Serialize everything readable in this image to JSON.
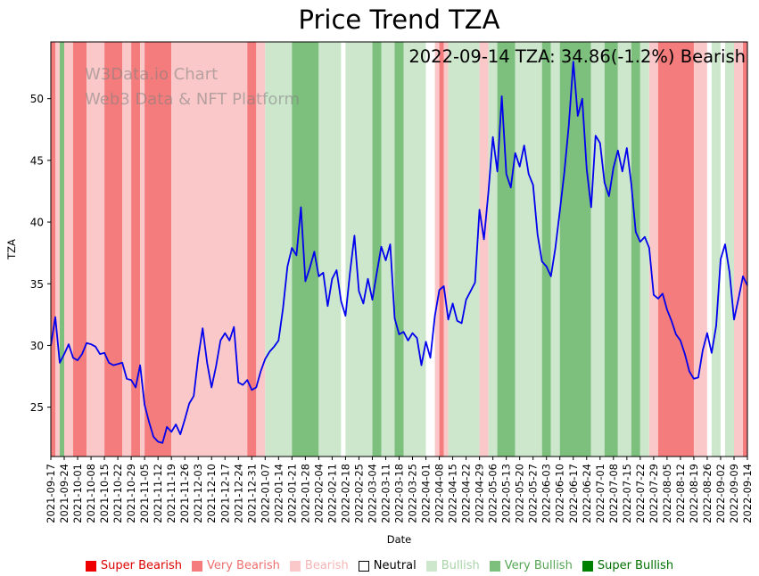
{
  "title": "Price Trend TZA",
  "annotation": "2022-09-14 TZA: 34.86(-1.2%) Bearish",
  "watermark": {
    "line1": "W3Data.io Chart",
    "line2": "Web3 Data & NFT Platform"
  },
  "chart_data": {
    "type": "line",
    "title": "Price Trend TZA",
    "xlabel": "Date",
    "ylabel": "TZA",
    "ylim": [
      21.0,
      54.6
    ],
    "yticks": [
      25,
      30,
      35,
      40,
      45,
      50
    ],
    "grid": false,
    "legend_position": "bottom",
    "latest": {
      "date": "2022-09-14",
      "value": 34.86,
      "change_pct": -1.2,
      "sentiment": "Bearish"
    },
    "x_tick_dates": [
      "2021-09-17",
      "2021-09-24",
      "2021-10-01",
      "2021-10-08",
      "2021-10-15",
      "2021-10-22",
      "2021-10-29",
      "2021-11-05",
      "2021-11-12",
      "2021-11-19",
      "2021-11-26",
      "2021-12-03",
      "2021-12-10",
      "2021-12-17",
      "2021-12-24",
      "2021-12-31",
      "2022-01-07",
      "2022-01-14",
      "2022-01-21",
      "2022-01-28",
      "2022-02-04",
      "2022-02-11",
      "2022-02-18",
      "2022-02-25",
      "2022-03-04",
      "2022-03-11",
      "2022-03-18",
      "2022-03-25",
      "2022-04-01",
      "2022-04-08",
      "2022-04-15",
      "2022-04-22",
      "2022-04-29",
      "2022-05-06",
      "2022-05-13",
      "2022-05-20",
      "2022-05-27",
      "2022-06-03",
      "2022-06-10",
      "2022-06-17",
      "2022-06-24",
      "2022-07-01",
      "2022-07-08",
      "2022-07-15",
      "2022-07-22",
      "2022-07-29",
      "2022-08-05",
      "2022-08-12",
      "2022-08-19",
      "2022-08-26",
      "2022-09-02",
      "2022-09-09",
      "2022-09-14"
    ],
    "ticks_every_n_points": 3,
    "series": [
      {
        "name": "TZA",
        "color": "#0000ee",
        "values": [
          30.0,
          32.3,
          28.6,
          29.3,
          30.1,
          29.0,
          28.8,
          29.3,
          30.2,
          30.1,
          29.9,
          29.3,
          29.4,
          28.6,
          28.4,
          28.5,
          28.6,
          27.3,
          27.2,
          26.6,
          28.4,
          25.2,
          23.8,
          22.6,
          22.2,
          22.1,
          23.4,
          23.0,
          23.6,
          22.8,
          24.0,
          25.3,
          25.9,
          29.0,
          31.4,
          28.6,
          26.6,
          28.3,
          30.4,
          31.0,
          30.4,
          31.5,
          27.0,
          26.8,
          27.2,
          26.4,
          26.6,
          27.9,
          28.9,
          29.5,
          29.9,
          30.4,
          33.0,
          36.4,
          37.9,
          37.3,
          41.2,
          35.2,
          36.3,
          37.6,
          35.6,
          35.9,
          33.2,
          35.4,
          36.1,
          33.6,
          32.4,
          35.9,
          38.9,
          34.4,
          33.4,
          35.4,
          33.7,
          35.9,
          38.0,
          36.9,
          38.2,
          32.2,
          30.9,
          31.1,
          30.4,
          31.0,
          30.6,
          28.4,
          30.3,
          29.0,
          32.4,
          34.5,
          34.8,
          32.1,
          33.4,
          32.0,
          31.8,
          33.7,
          34.4,
          35.1,
          41.0,
          38.6,
          42.4,
          46.9,
          44.1,
          50.2,
          43.9,
          42.8,
          45.6,
          44.5,
          46.2,
          43.9,
          43.0,
          39.0,
          36.8,
          36.4,
          35.6,
          37.9,
          40.9,
          44.0,
          47.8,
          53.0,
          48.6,
          50.0,
          44.3,
          41.2,
          47.0,
          46.4,
          43.2,
          42.1,
          44.4,
          45.8,
          44.1,
          46.0,
          43.1,
          39.2,
          38.4,
          38.8,
          37.9,
          34.1,
          33.8,
          34.2,
          32.9,
          32.0,
          30.9,
          30.4,
          29.3,
          27.9,
          27.3,
          27.4,
          29.6,
          31.0,
          29.4,
          31.6,
          37.0,
          38.2,
          35.9,
          32.1,
          33.8,
          35.6,
          34.86
        ]
      }
    ],
    "band_colors": {
      "super_bearish": "#ee0000",
      "very_bearish": "#f47c7c",
      "bearish": "#fac8c8",
      "neutral": "#ffffff",
      "bullish": "#cde7cd",
      "very_bullish": "#7dbf7d",
      "super_bullish": "#008000"
    },
    "sentiment_bands": [
      {
        "from": 0,
        "to": 1,
        "level": "very_bearish"
      },
      {
        "from": 1,
        "to": 2,
        "level": "bearish"
      },
      {
        "from": 2,
        "to": 3,
        "level": "very_bullish"
      },
      {
        "from": 3,
        "to": 5,
        "level": "bearish"
      },
      {
        "from": 5,
        "to": 8,
        "level": "very_bearish"
      },
      {
        "from": 8,
        "to": 12,
        "level": "bearish"
      },
      {
        "from": 12,
        "to": 16,
        "level": "very_bearish"
      },
      {
        "from": 16,
        "to": 18,
        "level": "bearish"
      },
      {
        "from": 18,
        "to": 20,
        "level": "very_bearish"
      },
      {
        "from": 20,
        "to": 21,
        "level": "bearish"
      },
      {
        "from": 21,
        "to": 27,
        "level": "very_bearish"
      },
      {
        "from": 27,
        "to": 44,
        "level": "bearish"
      },
      {
        "from": 44,
        "to": 46,
        "level": "very_bearish"
      },
      {
        "from": 46,
        "to": 48,
        "level": "bearish"
      },
      {
        "from": 48,
        "to": 54,
        "level": "bullish"
      },
      {
        "from": 54,
        "to": 60,
        "level": "very_bullish"
      },
      {
        "from": 60,
        "to": 65,
        "level": "bullish"
      },
      {
        "from": 65,
        "to": 66,
        "level": "neutral"
      },
      {
        "from": 66,
        "to": 72,
        "level": "bullish"
      },
      {
        "from": 72,
        "to": 74,
        "level": "very_bullish"
      },
      {
        "from": 74,
        "to": 77,
        "level": "bullish"
      },
      {
        "from": 77,
        "to": 79,
        "level": "very_bullish"
      },
      {
        "from": 79,
        "to": 84,
        "level": "bullish"
      },
      {
        "from": 84,
        "to": 86,
        "level": "neutral"
      },
      {
        "from": 86,
        "to": 87,
        "level": "bearish"
      },
      {
        "from": 87,
        "to": 88,
        "level": "very_bearish"
      },
      {
        "from": 88,
        "to": 89,
        "level": "bearish"
      },
      {
        "from": 89,
        "to": 96,
        "level": "bullish"
      },
      {
        "from": 96,
        "to": 98,
        "level": "bearish"
      },
      {
        "from": 98,
        "to": 100,
        "level": "bullish"
      },
      {
        "from": 100,
        "to": 104,
        "level": "very_bullish"
      },
      {
        "from": 104,
        "to": 110,
        "level": "bullish"
      },
      {
        "from": 110,
        "to": 112,
        "level": "very_bullish"
      },
      {
        "from": 112,
        "to": 114,
        "level": "bullish"
      },
      {
        "from": 114,
        "to": 121,
        "level": "very_bullish"
      },
      {
        "from": 121,
        "to": 124,
        "level": "bullish"
      },
      {
        "from": 124,
        "to": 127,
        "level": "very_bullish"
      },
      {
        "from": 127,
        "to": 130,
        "level": "bullish"
      },
      {
        "from": 130,
        "to": 132,
        "level": "very_bullish"
      },
      {
        "from": 132,
        "to": 134,
        "level": "bullish"
      },
      {
        "from": 134,
        "to": 136,
        "level": "bearish"
      },
      {
        "from": 136,
        "to": 144,
        "level": "very_bearish"
      },
      {
        "from": 144,
        "to": 147,
        "level": "bearish"
      },
      {
        "from": 147,
        "to": 148,
        "level": "neutral"
      },
      {
        "from": 148,
        "to": 150,
        "level": "bullish"
      },
      {
        "from": 150,
        "to": 151,
        "level": "neutral"
      },
      {
        "from": 151,
        "to": 153,
        "level": "bullish"
      },
      {
        "from": 153,
        "to": 155,
        "level": "bearish"
      },
      {
        "from": 155,
        "to": 156,
        "level": "very_bearish"
      }
    ]
  },
  "legend": {
    "items": [
      {
        "label": "Super Bearish",
        "swatch": "#ee0000",
        "text": "#dd0000"
      },
      {
        "label": "Very Bearish",
        "swatch": "#f47c7c",
        "text": "#ef6f6f"
      },
      {
        "label": "Bearish",
        "swatch": "#fac8c8",
        "text": "#f5b4b4"
      },
      {
        "label": "Neutral",
        "swatch": "#ffffff",
        "text": "#000000",
        "swatch_border": "#000000"
      },
      {
        "label": "Bullish",
        "swatch": "#cde7cd",
        "text": "#a9d3a9"
      },
      {
        "label": "Very Bullish",
        "swatch": "#7dbf7d",
        "text": "#55a555"
      },
      {
        "label": "Super Bullish",
        "swatch": "#008000",
        "text": "#007000"
      }
    ]
  }
}
